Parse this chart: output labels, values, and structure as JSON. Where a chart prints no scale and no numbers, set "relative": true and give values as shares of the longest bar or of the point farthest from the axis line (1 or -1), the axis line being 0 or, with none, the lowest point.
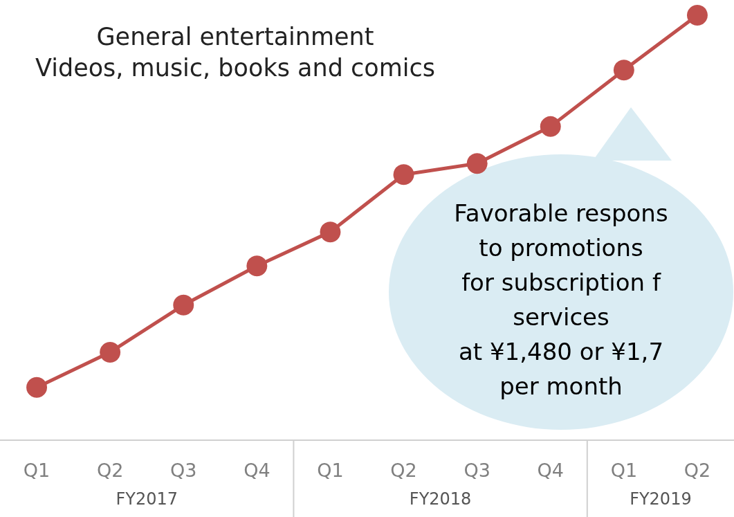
{
  "chart_data": {
    "type": "line",
    "relative": true,
    "marker": "circle",
    "categories": [
      "Q1",
      "Q2",
      "Q3",
      "Q4",
      "Q1",
      "Q2",
      "Q3",
      "Q4",
      "Q1",
      "Q2"
    ],
    "series": [
      {
        "color": "#c0504d",
        "values": [
          0.124,
          0.207,
          0.318,
          0.41,
          0.49,
          0.625,
          0.651,
          0.738,
          0.871,
          1
        ]
      }
    ],
    "annotations": [
      "General entertainment\nVideos, music, books and comics",
      "Favorable respons\nto promotions\nfor subscription f\nservices\nat ¥1,480 or ¥1,7\nper month",
      "FY2017",
      "FY2018",
      "FY2019"
    ]
  }
}
